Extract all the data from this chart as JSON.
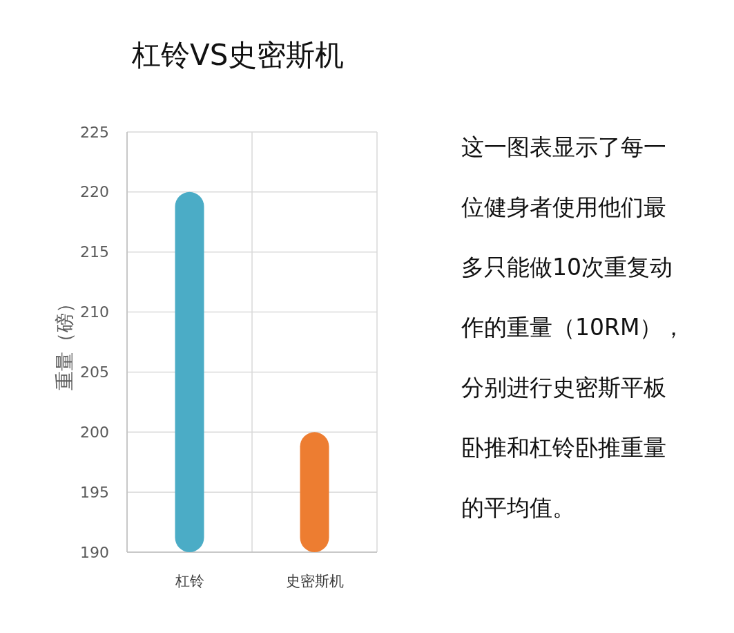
{
  "chart_data": {
    "type": "bar",
    "title": "杠铃VS史密斯机",
    "categories": [
      "杠铃",
      "史密斯机"
    ],
    "values": [
      220,
      200
    ],
    "colors": [
      "#4bacc6",
      "#ed7d31"
    ],
    "ylabel": "重量（磅）",
    "ylim": [
      190,
      225
    ],
    "yticks": [
      190,
      195,
      200,
      205,
      210,
      215,
      220,
      225
    ],
    "grid": true,
    "annotations": [
      "这一图表显示了每一位健身者使用他们最多只能做10次重复动作的重量（10RM），分别进行史密斯平板卧推和杠铃卧推重量的平均值。"
    ]
  }
}
